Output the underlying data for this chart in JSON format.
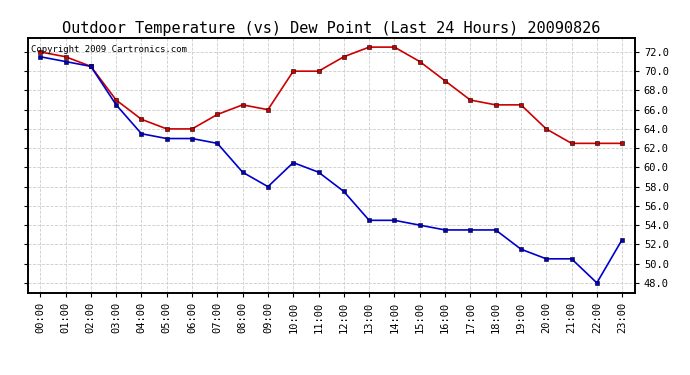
{
  "title": "Outdoor Temperature (vs) Dew Point (Last 24 Hours) 20090826",
  "copyright_text": "Copyright 2009 Cartronics.com",
  "x_labels": [
    "00:00",
    "01:00",
    "02:00",
    "03:00",
    "04:00",
    "05:00",
    "06:00",
    "07:00",
    "08:00",
    "09:00",
    "10:00",
    "11:00",
    "12:00",
    "13:00",
    "14:00",
    "15:00",
    "16:00",
    "17:00",
    "18:00",
    "19:00",
    "20:00",
    "21:00",
    "22:00",
    "23:00"
  ],
  "temp_data": [
    72.0,
    71.5,
    70.5,
    67.0,
    65.0,
    64.0,
    64.0,
    65.5,
    66.5,
    66.0,
    70.0,
    70.0,
    71.5,
    72.5,
    72.5,
    71.0,
    69.0,
    67.0,
    66.5,
    66.5,
    64.0,
    62.5,
    62.5,
    62.5
  ],
  "dew_data": [
    71.5,
    71.0,
    70.5,
    66.5,
    63.5,
    63.0,
    63.0,
    62.5,
    59.5,
    58.0,
    60.5,
    59.5,
    57.5,
    54.5,
    54.5,
    54.0,
    53.5,
    53.5,
    53.5,
    51.5,
    50.5,
    50.5,
    48.0,
    52.5
  ],
  "temp_color": "#cc0000",
  "dew_color": "#0000cc",
  "marker": "s",
  "marker_size": 3,
  "line_width": 1.2,
  "ylim": [
    47.0,
    73.5
  ],
  "yticks": [
    48.0,
    50.0,
    52.0,
    54.0,
    56.0,
    58.0,
    60.0,
    62.0,
    64.0,
    66.0,
    68.0,
    70.0,
    72.0
  ],
  "grid_color": "#cccccc",
  "bg_color": "#ffffff",
  "title_fontsize": 11,
  "tick_fontsize": 7.5,
  "copyright_fontsize": 6.5
}
